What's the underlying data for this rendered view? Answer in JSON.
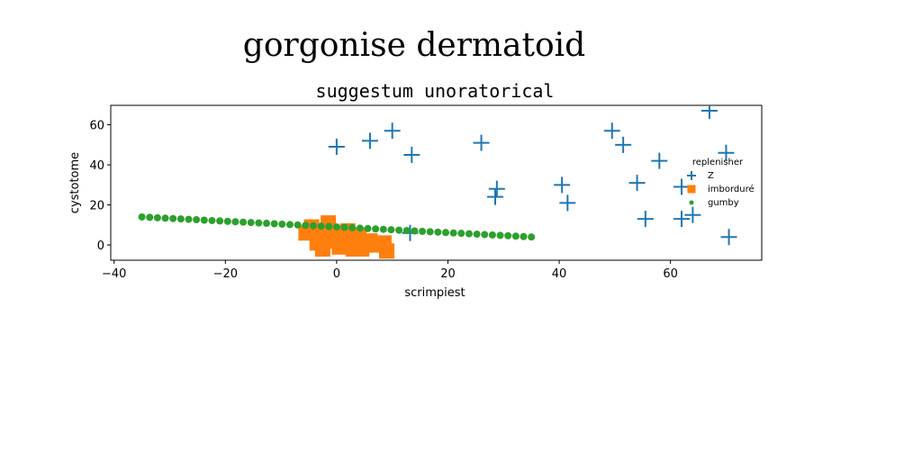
{
  "figure": {
    "suptitle": "gorgonise dermatoid"
  },
  "chart_data": {
    "type": "scatter",
    "title": "suggestum unoratorical",
    "xlabel": "scrimpiest",
    "ylabel": "cystotome",
    "xlim": [
      -40.6,
      76.4
    ],
    "ylim": [
      -7.6,
      69.7
    ],
    "xticks": [
      -40,
      -20,
      0,
      20,
      40,
      60
    ],
    "yticks": [
      0,
      20,
      40,
      60
    ],
    "grid": false,
    "legend": {
      "title": "replenisher",
      "placement": "right"
    },
    "series": [
      {
        "name": "Z",
        "marker": "plus",
        "color": "#1f77b4",
        "points": [
          [
            0.0,
            49
          ],
          [
            6,
            52
          ],
          [
            10,
            57
          ],
          [
            13.5,
            45
          ],
          [
            26,
            51
          ],
          [
            28.5,
            24
          ],
          [
            28.8,
            28
          ],
          [
            13.2,
            6
          ],
          [
            40.5,
            30
          ],
          [
            41.5,
            21
          ],
          [
            49.5,
            57
          ],
          [
            51.5,
            50
          ],
          [
            54,
            31
          ],
          [
            55.5,
            13
          ],
          [
            58,
            42
          ],
          [
            62,
            29
          ],
          [
            62,
            13
          ],
          [
            64,
            15
          ],
          [
            67,
            67
          ],
          [
            70,
            46
          ],
          [
            70.5,
            4
          ]
        ]
      },
      {
        "name": "imborduré",
        "marker": "square",
        "color": "#ff7f0e",
        "points": [
          [
            -5.5,
            6
          ],
          [
            -4.5,
            9
          ],
          [
            -3.5,
            1
          ],
          [
            -3,
            4
          ],
          [
            -2.5,
            -2
          ],
          [
            -1.5,
            11
          ],
          [
            -1,
            2
          ],
          [
            -0.5,
            6
          ],
          [
            0,
            3
          ],
          [
            0.5,
            -1
          ],
          [
            1.5,
            4
          ],
          [
            2,
            7
          ],
          [
            2.5,
            1
          ],
          [
            3,
            -2
          ],
          [
            3.5,
            3
          ],
          [
            4,
            5
          ],
          [
            4.5,
            -2
          ],
          [
            5,
            0
          ],
          [
            6,
            2
          ],
          [
            6.5,
            0
          ],
          [
            9,
            -3
          ],
          [
            8.5,
            1
          ],
          [
            2.8,
            1.5
          ]
        ]
      },
      {
        "name": "gumby",
        "marker": "circle",
        "color": "#2ca02c",
        "x_start": -35,
        "x_end": 35,
        "y_start": 14,
        "y_end": 4,
        "count": 51
      }
    ]
  }
}
